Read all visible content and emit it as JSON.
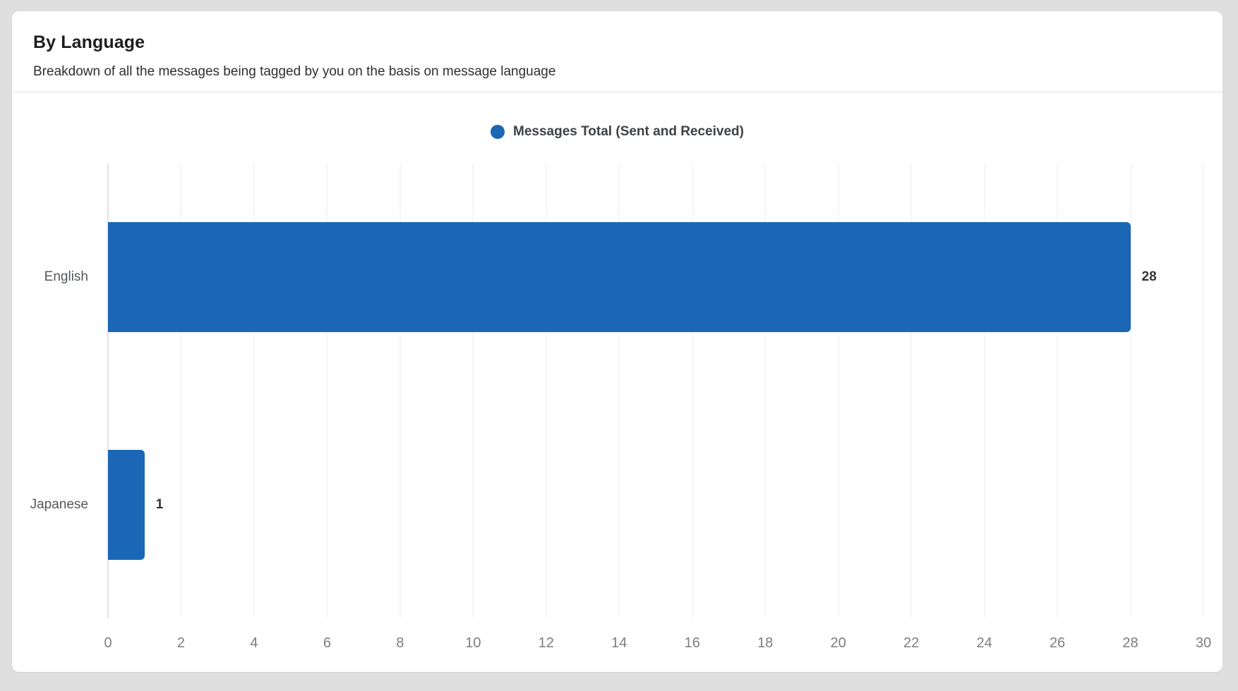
{
  "card": {
    "title": "By Language",
    "subtitle": "Breakdown of all the messages being tagged by you on the basis on message language"
  },
  "colors": {
    "bar": "#1b67b6",
    "page_background": "#dfdfdf",
    "card_background": "#ffffff",
    "gridline": "#ececec"
  },
  "chart_data": {
    "type": "bar",
    "orientation": "horizontal",
    "title": "By Language",
    "subtitle": "Breakdown of all the messages being tagged by you on the basis on message language",
    "legend_position": "top-center",
    "legend": [
      {
        "label": "Messages Total (Sent and Received)",
        "color": "#1b67b6",
        "marker": "circle"
      }
    ],
    "categories": [
      "English",
      "Japanese"
    ],
    "series": [
      {
        "name": "Messages Total (Sent and Received)",
        "color": "#1b67b6",
        "values": [
          28,
          1
        ]
      }
    ],
    "value_labels": [
      "28",
      "1"
    ],
    "xlabel": "",
    "ylabel": "",
    "xlim": [
      0,
      30
    ],
    "x_ticks": [
      0,
      2,
      4,
      6,
      8,
      10,
      12,
      14,
      16,
      18,
      20,
      22,
      24,
      26,
      28,
      30
    ],
    "grid": "vertical"
  }
}
